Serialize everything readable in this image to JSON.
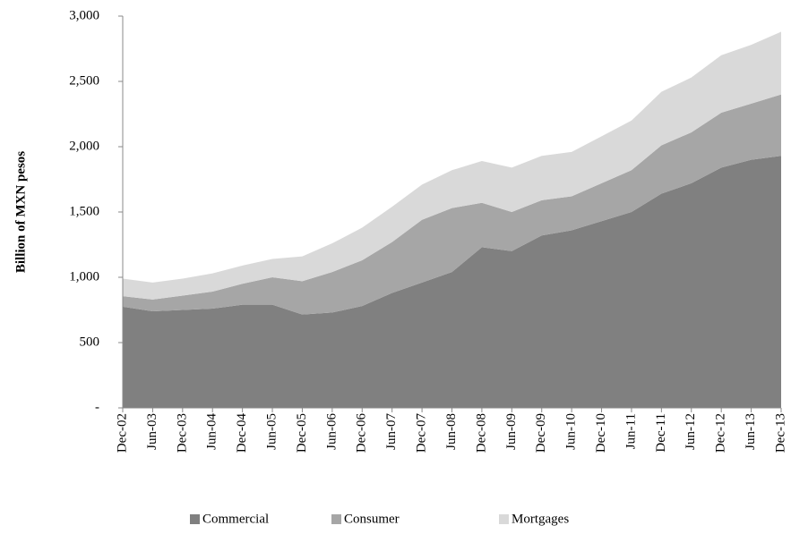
{
  "chart_data": {
    "type": "stacked-area",
    "y_label": "Billion of MXN pesos",
    "categories": [
      "Dec-02",
      "Jun-03",
      "Dec-03",
      "Jun-04",
      "Dec-04",
      "Jun-05",
      "Dec-05",
      "Jun-06",
      "Dec-06",
      "Jun-07",
      "Dec-07",
      "Jun-08",
      "Dec-08",
      "Jun-09",
      "Dec-09",
      "Jun-10",
      "Dec-10",
      "Jun-11",
      "Dec-11",
      "Jun-12",
      "Dec-12",
      "Jun-13",
      "Dec-13"
    ],
    "series": [
      {
        "name": "Commercial",
        "color": "#808080",
        "values": [
          775,
          740,
          750,
          760,
          790,
          790,
          715,
          730,
          780,
          880,
          960,
          1040,
          1230,
          1200,
          1320,
          1360,
          1430,
          1500,
          1640,
          1720,
          1840,
          1900,
          1930
        ]
      },
      {
        "name": "Consumer",
        "color": "#a6a6a6",
        "values": [
          80,
          90,
          110,
          130,
          160,
          210,
          255,
          310,
          350,
          390,
          480,
          490,
          340,
          300,
          270,
          260,
          290,
          320,
          370,
          390,
          420,
          430,
          470
        ]
      },
      {
        "name": "Mortgages",
        "color": "#d9d9d9",
        "values": [
          135,
          130,
          130,
          140,
          140,
          140,
          190,
          220,
          250,
          270,
          270,
          290,
          320,
          340,
          340,
          340,
          360,
          380,
          410,
          420,
          440,
          450,
          480
        ]
      }
    ],
    "ylim": [
      0,
      3000
    ],
    "yticks": [
      {
        "value": 0,
        "label": "-"
      },
      500,
      {
        "value": 1000,
        "label": "1,000"
      },
      {
        "value": 1500,
        "label": "1,500"
      },
      {
        "value": 2000,
        "label": "2,000"
      },
      {
        "value": 2500,
        "label": "2,500"
      },
      {
        "value": 3000,
        "label": "3,000"
      }
    ],
    "legend": "bottom"
  }
}
